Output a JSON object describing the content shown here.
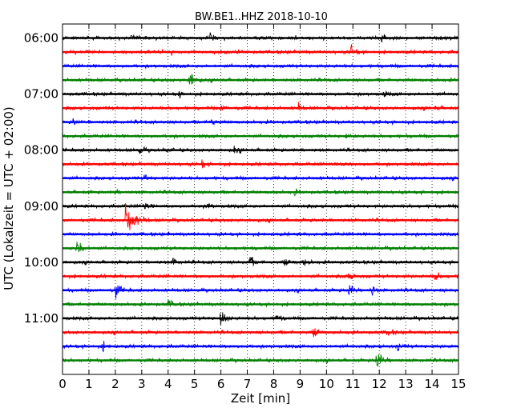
{
  "chart_data": {
    "type": "line",
    "title": "BW.BE1..HHZ 2018-10-10",
    "xlabel": "Zeit  [min]",
    "ylabel": "UTC (Lokalzeit = UTC + 02:00)",
    "xlim": [
      0,
      15
    ],
    "x_ticks": [
      "0",
      "1",
      "2",
      "3",
      "4",
      "5",
      "6",
      "7",
      "8",
      "9",
      "10",
      "11",
      "12",
      "13",
      "14",
      "15"
    ],
    "y_time_range": [
      "05:45",
      "12:00"
    ],
    "y_ticks": [
      "06:00",
      "07:00",
      "08:00",
      "09:00",
      "10:00",
      "11:00"
    ],
    "trace_minutes": 15,
    "grid": "vertical dotted at each minute",
    "colors": [
      "#000000",
      "#ff0000",
      "#0000ff",
      "#008000"
    ],
    "traces": [
      {
        "start": "06:00",
        "color": "#000000",
        "bursts": [
          [
            2.6,
            0.35
          ],
          [
            5.6,
            0.45
          ],
          [
            12.1,
            0.5
          ]
        ]
      },
      {
        "start": "06:15",
        "color": "#ff0000",
        "bursts": [
          [
            10.9,
            0.7
          ]
        ]
      },
      {
        "start": "06:30",
        "color": "#0000ff",
        "bursts": []
      },
      {
        "start": "06:45",
        "color": "#008000",
        "bursts": [
          [
            4.8,
            0.95
          ]
        ]
      },
      {
        "start": "07:00",
        "color": "#000000",
        "bursts": [
          [
            4.4,
            0.3
          ],
          [
            12.2,
            0.3
          ]
        ]
      },
      {
        "start": "07:15",
        "color": "#ff0000",
        "bursts": [
          [
            6.0,
            0.4
          ],
          [
            8.9,
            0.45
          ],
          [
            14.1,
            0.3
          ]
        ]
      },
      {
        "start": "07:30",
        "color": "#0000ff",
        "bursts": [
          [
            0.4,
            0.4
          ],
          [
            5.6,
            0.45
          ]
        ]
      },
      {
        "start": "07:45",
        "color": "#008000",
        "bursts": [
          [
            10.7,
            0.25
          ]
        ]
      },
      {
        "start": "08:00",
        "color": "#000000",
        "bursts": [
          [
            2.9,
            0.5
          ],
          [
            3.9,
            0.3
          ],
          [
            6.5,
            0.35
          ]
        ]
      },
      {
        "start": "08:15",
        "color": "#ff0000",
        "bursts": [
          [
            5.3,
            0.35
          ],
          [
            10.6,
            0.3
          ]
        ]
      },
      {
        "start": "08:30",
        "color": "#0000ff",
        "bursts": [
          [
            3.1,
            0.35
          ]
        ]
      },
      {
        "start": "08:45",
        "color": "#008000",
        "bursts": [
          [
            2.0,
            0.3
          ],
          [
            8.8,
            0.25
          ]
        ]
      },
      {
        "start": "09:00",
        "color": "#000000",
        "bursts": [
          [
            3.05,
            0.55
          ],
          [
            5.5,
            0.4
          ]
        ]
      },
      {
        "start": "09:15",
        "color": "#ff0000",
        "bursts": [
          [
            2.4,
            2.0
          ]
        ]
      },
      {
        "start": "09:30",
        "color": "#0000ff",
        "bursts": []
      },
      {
        "start": "09:45",
        "color": "#008000",
        "bursts": [
          [
            0.55,
            1.0
          ]
        ]
      },
      {
        "start": "10:00",
        "color": "#000000",
        "bursts": [
          [
            4.2,
            0.6
          ],
          [
            7.1,
            0.6
          ],
          [
            8.4,
            0.6
          ],
          [
            9.1,
            0.5
          ]
        ]
      },
      {
        "start": "10:15",
        "color": "#ff0000",
        "bursts": [
          [
            10.8,
            0.6
          ],
          [
            14.1,
            0.6
          ]
        ]
      },
      {
        "start": "10:30",
        "color": "#0000ff",
        "bursts": [
          [
            2.0,
            0.95
          ],
          [
            10.85,
            0.8
          ],
          [
            11.7,
            0.6
          ]
        ]
      },
      {
        "start": "10:45",
        "color": "#008000",
        "bursts": [
          [
            4.0,
            0.6
          ]
        ]
      },
      {
        "start": "11:00",
        "color": "#000000",
        "bursts": [
          [
            6.0,
            0.85
          ],
          [
            8.1,
            0.45
          ]
        ]
      },
      {
        "start": "11:15",
        "color": "#ff0000",
        "bursts": [
          [
            9.5,
            0.8
          ],
          [
            12.3,
            0.5
          ]
        ]
      },
      {
        "start": "11:30",
        "color": "#0000ff",
        "bursts": [
          [
            1.5,
            0.45
          ],
          [
            12.7,
            0.45
          ]
        ]
      },
      {
        "start": "11:45",
        "color": "#008000",
        "bursts": [
          [
            11.9,
            1.2
          ]
        ]
      }
    ]
  }
}
